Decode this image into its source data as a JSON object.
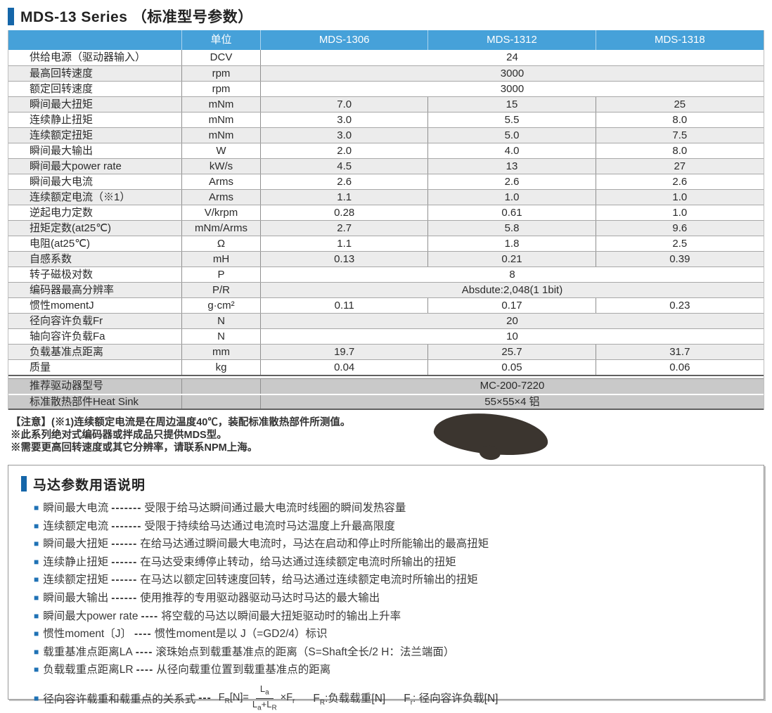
{
  "page_title": "MDS-13 Series （标准型号参数）",
  "table": {
    "corner_header": "",
    "unit_header": "单位",
    "model_headers": [
      "MDS-1306",
      "MDS-1312",
      "MDS-1318"
    ],
    "rows": [
      {
        "name": "供给电源（驱动器输入）",
        "unit": "DCV",
        "merged": true,
        "value": "24"
      },
      {
        "name": "最高回转速度",
        "unit": "rpm",
        "merged": true,
        "value": "3000"
      },
      {
        "name": "额定回转速度",
        "unit": "rpm",
        "merged": true,
        "value": "3000"
      },
      {
        "name": "瞬间最大扭矩",
        "unit": "mNm",
        "merged": false,
        "values": [
          "7.0",
          "15",
          "25"
        ]
      },
      {
        "name": "连续静止扭矩",
        "unit": "mNm",
        "merged": false,
        "values": [
          "3.0",
          "5.5",
          "8.0"
        ]
      },
      {
        "name": "连续额定扭矩",
        "unit": "mNm",
        "merged": false,
        "values": [
          "3.0",
          "5.0",
          "7.5"
        ]
      },
      {
        "name": "瞬间最大输出",
        "unit": "W",
        "merged": false,
        "values": [
          "2.0",
          "4.0",
          "8.0"
        ]
      },
      {
        "name": "瞬间最大power rate",
        "unit": "kW/s",
        "merged": false,
        "values": [
          "4.5",
          "13",
          "27"
        ]
      },
      {
        "name": "瞬间最大电流",
        "unit": "Arms",
        "merged": false,
        "values": [
          "2.6",
          "2.6",
          "2.6"
        ]
      },
      {
        "name": "连续额定电流（※1）",
        "unit": "Arms",
        "merged": false,
        "values": [
          "1.1",
          "1.0",
          "1.0"
        ]
      },
      {
        "name": "逆起电力定数",
        "unit": "V/krpm",
        "merged": false,
        "values": [
          "0.28",
          "0.61",
          "1.0"
        ]
      },
      {
        "name": "扭矩定数(at25℃)",
        "unit": "mNm/Arms",
        "merged": false,
        "values": [
          "2.7",
          "5.8",
          "9.6"
        ]
      },
      {
        "name": "电阻(at25℃)",
        "unit": "Ω",
        "merged": false,
        "values": [
          "1.1",
          "1.8",
          "2.5"
        ]
      },
      {
        "name": "自感系数",
        "unit": "mH",
        "merged": false,
        "values": [
          "0.13",
          "0.21",
          "0.39"
        ]
      },
      {
        "name": "转子磁极对数",
        "unit": "P",
        "merged": true,
        "value": "8"
      },
      {
        "name": "编码器最高分辨率",
        "unit": "P/R",
        "merged": true,
        "value": "Absdute:2,048(1 1bit)"
      },
      {
        "name": "惯性momentJ",
        "unit": "g·cm²",
        "merged": false,
        "values": [
          "0.11",
          "0.17",
          "0.23"
        ]
      },
      {
        "name": "径向容许负载Fr",
        "unit": "N",
        "merged": true,
        "value": "20"
      },
      {
        "name": "轴向容许负载Fa",
        "unit": "N",
        "merged": true,
        "value": "10"
      },
      {
        "name": "负载基准点距离",
        "unit": "mm",
        "merged": false,
        "values": [
          "19.7",
          "25.7",
          "31.7"
        ]
      },
      {
        "name": "质量",
        "unit": "kg",
        "merged": false,
        "values": [
          "0.04",
          "0.05",
          "0.06"
        ]
      }
    ],
    "footer_rows": [
      {
        "name": "推荐驱动器型号",
        "unit": "",
        "merged": true,
        "value": "MC-200-7220"
      },
      {
        "name": "标准散热部件Heat Sink",
        "unit": "",
        "merged": true,
        "value": "55×55×4 铝"
      }
    ]
  },
  "notes": [
    "【注意】(※1)连续额定电流是在周边温度40℃，装配标准散热部件所测值。",
    "※此系列绝对式编码器或拌成品只提供MDS型。",
    "※需要更高回转速度或其它分辨率，请联系NPM上海。"
  ],
  "glossary": {
    "title": "马达参数用语说明",
    "bullet": "■",
    "items": [
      {
        "term": "瞬间最大电流",
        "dashes": "-------",
        "desc": "受限于给马达瞬间通过最大电流时线圈的瞬间发热容量"
      },
      {
        "term": "连续额定电流",
        "dashes": "-------",
        "desc": "受限于持续给马达通过电流时马达温度上升最高限度"
      },
      {
        "term": "瞬间最大扭矩",
        "dashes": "------",
        "desc": "在给马达通过瞬间最大电流时，马达在启动和停止时所能输出的最高扭矩"
      },
      {
        "term": "连续静止扭矩",
        "dashes": "------",
        "desc": "在马达受束缚停止转动，给马达通过连续额定电流时所输出的扭矩"
      },
      {
        "term": "连续额定扭矩",
        "dashes": "------",
        "desc": "在马达以额定回转速度回转，给马达通过连续额定电流时所输出的扭矩"
      },
      {
        "term": "瞬间最大输出",
        "dashes": "------",
        "desc": "使用推荐的专用驱动器驱动马达时马达的最大输出"
      },
      {
        "term": "瞬间最大power rate",
        "dashes": "----",
        "desc": "将空载的马达以瞬间最大扭矩驱动时的输出上升率"
      },
      {
        "term": "惯性moment〔J〕",
        "dashes": "----",
        "desc": "惯性moment是以 J（=GD2/4）标识"
      },
      {
        "term": "载重基准点距离LA",
        "dashes": "----",
        "desc": "滚珠始点到载重基准点的距离（S=Shaft全长/2 H：法兰端面）"
      },
      {
        "term": "负载载重点距离LR",
        "dashes": "----",
        "desc": "从径向载重位置到载重基准点的距离"
      }
    ],
    "formula_item": {
      "label": "径向容许载重和载重点的关系式",
      "dashes": "---",
      "lhs_base": "F",
      "lhs_sub": "R",
      "lhs_rest": "[N]=",
      "num_base": "L",
      "num_sub": "a",
      "den_base1": "L",
      "den_sub1": "a",
      "den_plus": "+",
      "den_base2": "L",
      "den_sub2": "R",
      "times": "×",
      "rhs_base": "F",
      "rhs_sub": "r",
      "legend1_base": "F",
      "legend1_sub": "R",
      "legend1_rest": ":负载载重[N]",
      "legend2_base": "F",
      "legend2_sub": "r",
      "legend2_rest": ": 径向容许负载[N]"
    }
  }
}
